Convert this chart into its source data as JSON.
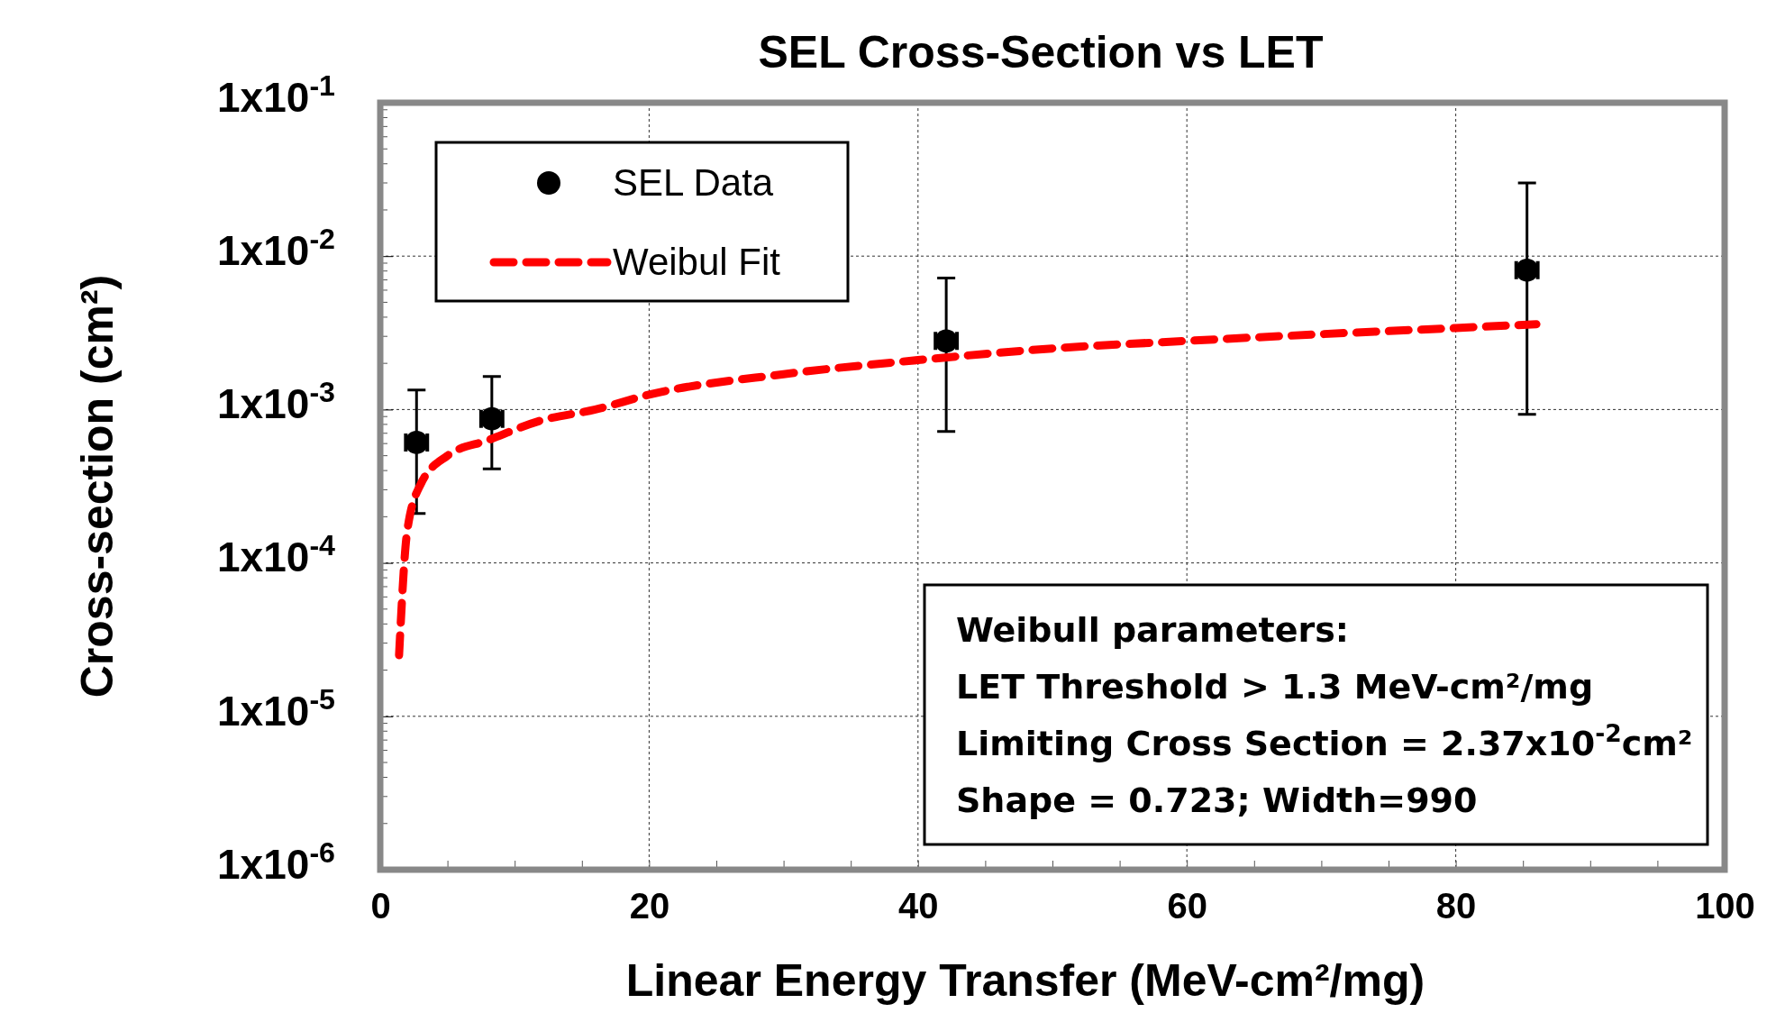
{
  "chart_data": {
    "type": "scatter",
    "title": "SEL Cross-Section vs LET",
    "xlabel": "Linear Energy Transfer (MeV-cm²/mg)",
    "ylabel": "Cross-section (cm²)",
    "log": "y",
    "grid": true,
    "legend": "top left",
    "xlim": [
      0,
      100
    ],
    "xticks": [
      0,
      {
        "value": 5,
        "label": null
      },
      {
        "value": 10,
        "label": null
      },
      {
        "value": 15,
        "label": null
      },
      20,
      {
        "value": 25,
        "label": null
      },
      {
        "value": 30,
        "label": null
      },
      {
        "value": 35,
        "label": null
      },
      40,
      {
        "value": 45,
        "label": null
      },
      {
        "value": 50,
        "label": null
      },
      {
        "value": 55,
        "label": null
      },
      60,
      {
        "value": 65,
        "label": null
      },
      {
        "value": 70,
        "label": null
      },
      {
        "value": 75,
        "label": null
      },
      80,
      {
        "value": 85,
        "label": null
      },
      {
        "value": 90,
        "label": null
      },
      {
        "value": 95,
        "label": null
      },
      100
    ],
    "ylim": [
      1e-06,
      0.1
    ],
    "yticks": [
      {
        "value": 1e-06,
        "label": "1x10$^{-6}$"
      },
      {
        "value": 1e-05,
        "label": "1x10$^{-5}$"
      },
      {
        "value": 0.0001,
        "label": "1x10$^{-4}$"
      },
      {
        "value": 0.001,
        "label": "1x10$^{-3}$"
      },
      {
        "value": 0.01,
        "label": "1x10$^{-2}$"
      },
      {
        "value": 0.1,
        "label": "1x10$^{-1}$"
      }
    ],
    "series": [
      {
        "name": "SEL Data",
        "color": "#000000",
        "marker": "circle",
        "x": [
          2.7,
          8.3,
          42.1,
          85.3
        ],
        "values": [
          0.00061,
          0.00087,
          0.0028,
          0.0081
        ],
        "errors": [
          [
            0.00021,
            0.00134
          ],
          [
            0.00041,
            0.00164
          ],
          [
            0.00072,
            0.0072
          ],
          [
            0.00093,
            0.03
          ]
        ],
        "xerrors": [
          0.8,
          0.8,
          0.8,
          0.8
        ]
      },
      {
        "name": "Weibul Fit",
        "type": "line",
        "color": "#ff0000",
        "marker": "none",
        "line_style": "dashed",
        "x": [
          1.4,
          2,
          3,
          5,
          8,
          12,
          16,
          20,
          30,
          40,
          50,
          60,
          70,
          80,
          86
        ],
        "values": [
          2.5e-05,
          0.00016,
          0.000325,
          0.0005,
          0.00063,
          0.00085,
          0.001,
          0.00125,
          0.0017,
          0.0021,
          0.0025,
          0.0028,
          0.0031,
          0.0034,
          0.0036
        ]
      }
    ],
    "annotations": [
      "Weibull parameters:",
      "LET Threshold > 1.3 MeV-cm²/mg",
      "Limiting Cross Section = 2.37x10$^{-2}$cm²",
      "Shape = 0.723;  Width=990"
    ]
  }
}
